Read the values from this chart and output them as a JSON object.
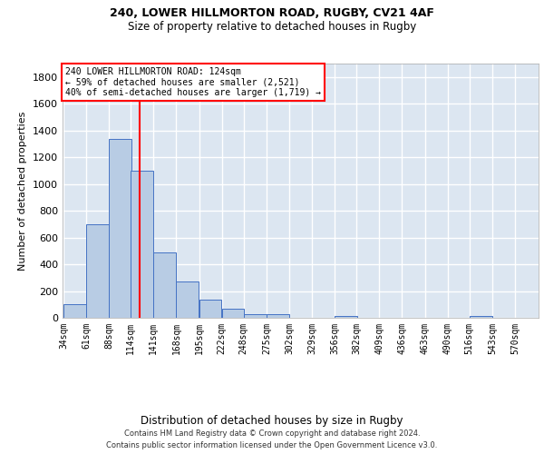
{
  "title1": "240, LOWER HILLMORTON ROAD, RUGBY, CV21 4AF",
  "title2": "Size of property relative to detached houses in Rugby",
  "xlabel": "Distribution of detached houses by size in Rugby",
  "ylabel": "Number of detached properties",
  "footer": "Contains HM Land Registry data © Crown copyright and database right 2024.\nContains public sector information licensed under the Open Government Licence v3.0.",
  "bin_labels": [
    "34sqm",
    "61sqm",
    "88sqm",
    "114sqm",
    "141sqm",
    "168sqm",
    "195sqm",
    "222sqm",
    "248sqm",
    "275sqm",
    "302sqm",
    "329sqm",
    "356sqm",
    "382sqm",
    "409sqm",
    "436sqm",
    "463sqm",
    "490sqm",
    "516sqm",
    "543sqm",
    "570sqm"
  ],
  "bar_values": [
    100,
    700,
    1340,
    1100,
    490,
    270,
    135,
    70,
    30,
    30,
    0,
    0,
    15,
    0,
    0,
    0,
    0,
    0,
    15,
    0,
    0
  ],
  "bar_color": "#b8cce4",
  "bar_edge_color": "#4472c4",
  "background_color": "#dce6f1",
  "grid_color": "#ffffff",
  "property_label": "240 LOWER HILLMORTON ROAD: 124sqm",
  "pct_smaller": 59,
  "n_smaller": 2521,
  "pct_larger_semi": 40,
  "n_larger_semi": 1719,
  "vline_color": "#ff0000",
  "annotation_box_color": "#ff0000",
  "ylim": [
    0,
    1900
  ],
  "yticks": [
    0,
    200,
    400,
    600,
    800,
    1000,
    1200,
    1400,
    1600,
    1800
  ],
  "bin_starts": [
    34,
    61,
    88,
    114,
    141,
    168,
    195,
    222,
    248,
    275,
    302,
    329,
    356,
    382,
    409,
    436,
    463,
    490,
    516,
    543,
    570
  ],
  "bin_width": 27,
  "vline_x": 124
}
